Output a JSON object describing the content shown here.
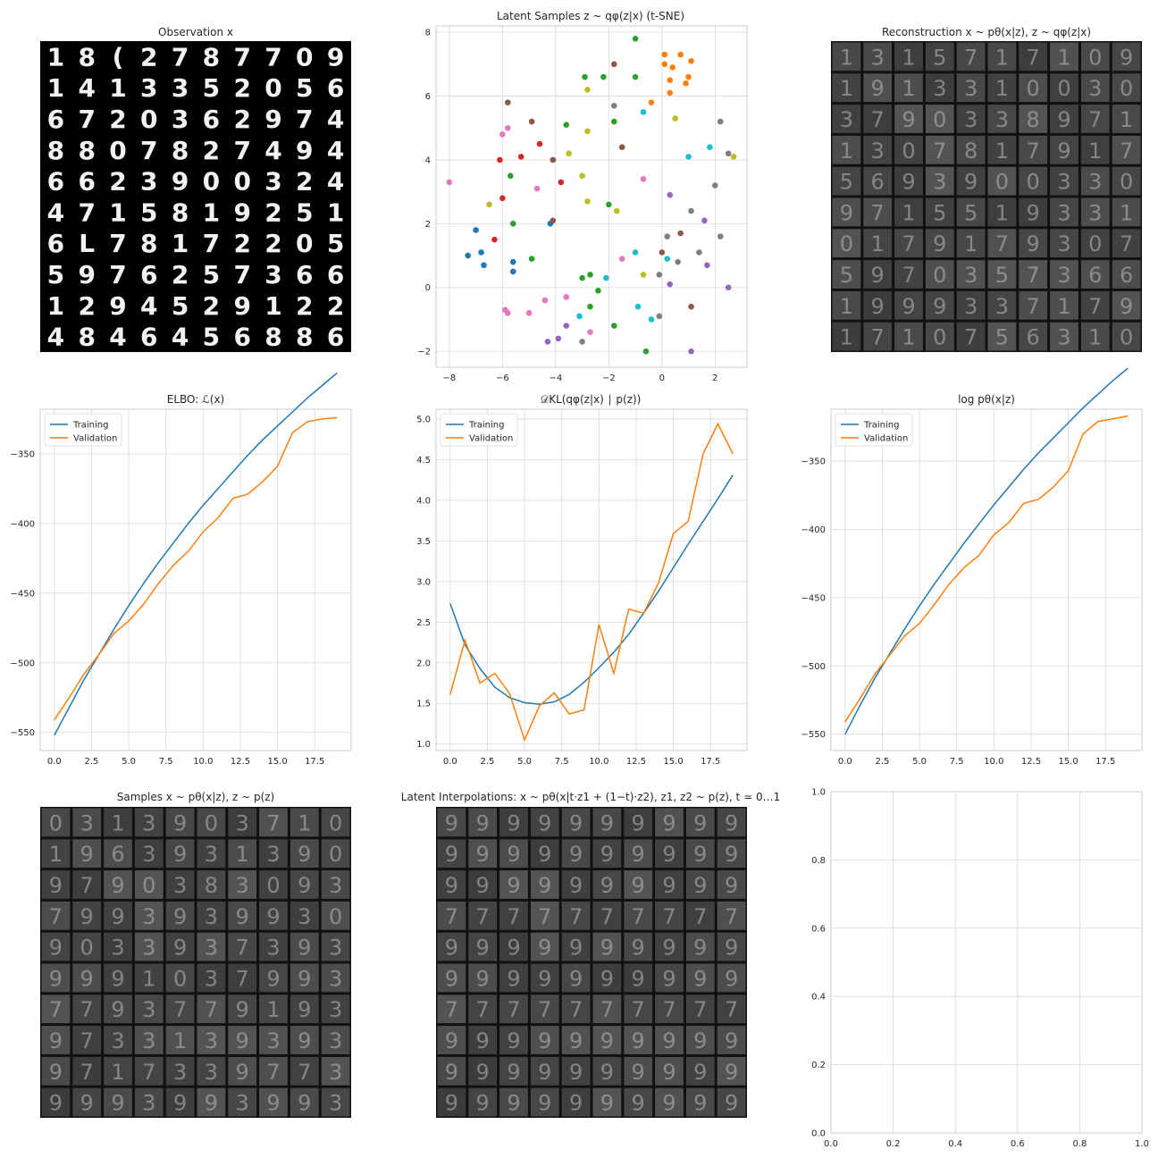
{
  "observation": {
    "title": "Observation x",
    "digits": [
      [
        "1",
        "8",
        "(",
        "2",
        "7",
        "8",
        "7",
        "7",
        "0",
        "9"
      ],
      [
        "1",
        "4",
        "1",
        "3",
        "3",
        "5",
        "2",
        "0",
        "5",
        "6"
      ],
      [
        "6",
        "7",
        "2",
        "0",
        "3",
        "6",
        "2",
        "9",
        "7",
        "4"
      ],
      [
        "8",
        "8",
        "0",
        "7",
        "8",
        "2",
        "7",
        "4",
        "9",
        "4"
      ],
      [
        "6",
        "6",
        "2",
        "3",
        "9",
        "0",
        "0",
        "3",
        "2",
        "4"
      ],
      [
        "4",
        "7",
        "1",
        "5",
        "8",
        "1",
        "9",
        "2",
        "5",
        "1"
      ],
      [
        "6",
        "L",
        "7",
        "8",
        "1",
        "7",
        "2",
        "2",
        "0",
        "5"
      ],
      [
        "5",
        "9",
        "7",
        "6",
        "2",
        "5",
        "7",
        "3",
        "6",
        "6"
      ],
      [
        "1",
        "2",
        "9",
        "4",
        "5",
        "2",
        "9",
        "1",
        "2",
        "2"
      ],
      [
        "4",
        "8",
        "4",
        "6",
        "4",
        "5",
        "6",
        "8",
        "8",
        "6"
      ]
    ]
  },
  "reconstruction": {
    "title": "Reconstruction x ~ pθ(x|z), z ~ qφ(z|x)",
    "digits": [
      [
        "1",
        "3",
        "1",
        "5",
        "7",
        "1",
        "7",
        "1",
        "0",
        "9"
      ],
      [
        "1",
        "9",
        "1",
        "3",
        "3",
        "1",
        "0",
        "0",
        "3",
        "0"
      ],
      [
        "3",
        "7",
        "9",
        "0",
        "3",
        "3",
        "8",
        "9",
        "7",
        "1"
      ],
      [
        "1",
        "3",
        "0",
        "7",
        "8",
        "1",
        "7",
        "9",
        "1",
        "7"
      ],
      [
        "5",
        "6",
        "9",
        "3",
        "9",
        "0",
        "0",
        "3",
        "3",
        "0"
      ],
      [
        "9",
        "7",
        "1",
        "5",
        "5",
        "1",
        "9",
        "3",
        "3",
        "1"
      ],
      [
        "0",
        "1",
        "7",
        "9",
        "1",
        "7",
        "9",
        "3",
        "0",
        "7"
      ],
      [
        "5",
        "9",
        "7",
        "0",
        "3",
        "5",
        "7",
        "3",
        "6",
        "6"
      ],
      [
        "1",
        "9",
        "9",
        "9",
        "3",
        "3",
        "7",
        "1",
        "7",
        "9"
      ],
      [
        "1",
        "7",
        "1",
        "0",
        "7",
        "5",
        "6",
        "3",
        "1",
        "0"
      ]
    ]
  },
  "samples": {
    "title": "Samples x ~ pθ(x|z), z ~ p(z)",
    "digits": [
      [
        "0",
        "3",
        "1",
        "3",
        "9",
        "0",
        "3",
        "7",
        "1",
        "0"
      ],
      [
        "1",
        "9",
        "6",
        "3",
        "9",
        "3",
        "1",
        "3",
        "9",
        "0"
      ],
      [
        "9",
        "7",
        "9",
        "0",
        "3",
        "8",
        "3",
        "0",
        "9",
        "3"
      ],
      [
        "7",
        "9",
        "9",
        "3",
        "9",
        "3",
        "9",
        "9",
        "3",
        "0"
      ],
      [
        "9",
        "0",
        "3",
        "3",
        "9",
        "3",
        "7",
        "3",
        "9",
        "3"
      ],
      [
        "9",
        "9",
        "9",
        "1",
        "0",
        "3",
        "7",
        "9",
        "9",
        "3"
      ],
      [
        "7",
        "7",
        "9",
        "3",
        "7",
        "7",
        "9",
        "1",
        "9",
        "3"
      ],
      [
        "9",
        "7",
        "3",
        "3",
        "1",
        "3",
        "9",
        "3",
        "9",
        "3"
      ],
      [
        "9",
        "7",
        "1",
        "7",
        "3",
        "3",
        "9",
        "7",
        "7",
        "3"
      ],
      [
        "9",
        "9",
        "9",
        "3",
        "9",
        "9",
        "3",
        "9",
        "9",
        "3"
      ]
    ]
  },
  "interpolations": {
    "title": "Latent Interpolations: x ~ pθ(x|t·z1 + (1−t)·z2), z1, z2 ~ p(z), t = 0…1",
    "digits": [
      [
        "9",
        "9",
        "9",
        "9",
        "9",
        "9",
        "9",
        "9",
        "9",
        "9"
      ],
      [
        "9",
        "9",
        "9",
        "9",
        "9",
        "9",
        "9",
        "9",
        "9",
        "9"
      ],
      [
        "9",
        "9",
        "9",
        "9",
        "9",
        "9",
        "9",
        "9",
        "9",
        "9"
      ],
      [
        "7",
        "7",
        "7",
        "7",
        "7",
        "7",
        "7",
        "7",
        "7",
        "7"
      ],
      [
        "9",
        "9",
        "9",
        "9",
        "9",
        "9",
        "9",
        "9",
        "9",
        "9"
      ],
      [
        "9",
        "9",
        "9",
        "9",
        "9",
        "9",
        "9",
        "9",
        "9",
        "9"
      ],
      [
        "7",
        "7",
        "7",
        "7",
        "7",
        "7",
        "7",
        "7",
        "7",
        "7"
      ],
      [
        "9",
        "9",
        "9",
        "9",
        "9",
        "9",
        "9",
        "9",
        "9",
        "9"
      ],
      [
        "9",
        "9",
        "9",
        "9",
        "9",
        "9",
        "9",
        "9",
        "9",
        "9"
      ],
      [
        "9",
        "9",
        "9",
        "9",
        "9",
        "9",
        "9",
        "9",
        "9",
        "9"
      ]
    ]
  },
  "chart_data": [
    {
      "type": "scatter",
      "title": "Latent Samples z ~ qφ(z|x) (t-SNE)",
      "xlim": [
        -8.5,
        3.2
      ],
      "ylim": [
        -2.5,
        8.2
      ],
      "xticks": [
        -8,
        -6,
        -4,
        -2,
        0,
        2
      ],
      "yticks": [
        -2,
        0,
        2,
        4,
        6,
        8
      ],
      "grid": true,
      "series": [
        {
          "color": "#1f77b4",
          "points": [
            [
              -7.0,
              1.8
            ],
            [
              -7.3,
              1.0
            ],
            [
              -6.8,
              1.1
            ],
            [
              -6.7,
              0.7
            ],
            [
              -5.6,
              0.8
            ],
            [
              -5.6,
              0.5
            ],
            [
              -4.2,
              2.0
            ]
          ]
        },
        {
          "color": "#ff7f0e",
          "points": [
            [
              0.1,
              7.3
            ],
            [
              0.1,
              7.0
            ],
            [
              0.4,
              6.9
            ],
            [
              0.7,
              7.3
            ],
            [
              1.1,
              7.1
            ],
            [
              0.3,
              6.5
            ],
            [
              1.0,
              6.6
            ],
            [
              0.9,
              6.4
            ],
            [
              0.3,
              6.1
            ],
            [
              -0.4,
              5.8
            ]
          ]
        },
        {
          "color": "#2ca02c",
          "points": [
            [
              -1.0,
              7.8
            ],
            [
              -2.9,
              6.6
            ],
            [
              -2.2,
              6.6
            ],
            [
              -1.0,
              6.6
            ],
            [
              -1.8,
              5.2
            ],
            [
              -3.6,
              5.1
            ],
            [
              -5.7,
              3.5
            ],
            [
              -5.6,
              2.0
            ],
            [
              -4.9,
              0.9
            ],
            [
              -2.0,
              2.6
            ],
            [
              -3.0,
              0.3
            ],
            [
              -2.7,
              0.4
            ],
            [
              -2.4,
              -0.1
            ],
            [
              -2.7,
              -0.6
            ],
            [
              -1.8,
              -1.2
            ],
            [
              -0.6,
              -2.0
            ]
          ]
        },
        {
          "color": "#d62728",
          "points": [
            [
              -6.1,
              4.0
            ],
            [
              -4.6,
              4.5
            ],
            [
              -5.3,
              4.1
            ],
            [
              -3.8,
              3.3
            ],
            [
              -6.0,
              2.8
            ],
            [
              -6.3,
              1.5
            ]
          ]
        },
        {
          "color": "#9467bd",
          "points": [
            [
              0.3,
              2.9
            ],
            [
              1.6,
              2.1
            ],
            [
              1.7,
              0.7
            ],
            [
              0.3,
              0.1
            ],
            [
              2.5,
              0.0
            ],
            [
              -3.6,
              -1.2
            ],
            [
              -4.3,
              -1.7
            ],
            [
              -3.9,
              -1.6
            ],
            [
              1.1,
              -2.0
            ]
          ]
        },
        {
          "color": "#8c564b",
          "points": [
            [
              -5.8,
              5.8
            ],
            [
              -4.9,
              5.2
            ],
            [
              -1.8,
              7.0
            ],
            [
              -4.1,
              4.0
            ],
            [
              -1.5,
              4.4
            ],
            [
              -4.1,
              2.1
            ],
            [
              0.7,
              1.7
            ],
            [
              0.0,
              1.1
            ],
            [
              1.1,
              -0.6
            ]
          ]
        },
        {
          "color": "#e377c2",
          "points": [
            [
              -6.0,
              4.8
            ],
            [
              -5.8,
              5.0
            ],
            [
              -8.0,
              3.3
            ],
            [
              -4.7,
              3.1
            ],
            [
              -0.7,
              3.4
            ],
            [
              -1.5,
              0.9
            ],
            [
              -4.4,
              -0.4
            ],
            [
              -3.6,
              -0.3
            ],
            [
              -5.9,
              -0.7
            ],
            [
              -5.8,
              -0.8
            ],
            [
              -5.0,
              -0.8
            ],
            [
              -2.7,
              -1.4
            ]
          ]
        },
        {
          "color": "#7f7f7f",
          "points": [
            [
              -1.8,
              5.7
            ],
            [
              2.2,
              5.2
            ],
            [
              2.5,
              4.2
            ],
            [
              2.0,
              3.2
            ],
            [
              1.1,
              2.4
            ],
            [
              2.2,
              1.6
            ],
            [
              0.2,
              1.6
            ],
            [
              1.4,
              1.1
            ],
            [
              0.6,
              0.8
            ],
            [
              -0.1,
              0.4
            ],
            [
              -0.1,
              -0.9
            ],
            [
              -3.0,
              -1.7
            ]
          ]
        },
        {
          "color": "#bcbd22",
          "points": [
            [
              -2.8,
              6.2
            ],
            [
              -2.8,
              4.9
            ],
            [
              0.5,
              5.3
            ],
            [
              -3.5,
              4.2
            ],
            [
              -3.0,
              3.5
            ],
            [
              -6.5,
              2.6
            ],
            [
              -2.8,
              2.7
            ],
            [
              -1.7,
              2.4
            ],
            [
              2.7,
              4.1
            ],
            [
              -0.7,
              0.4
            ]
          ]
        },
        {
          "color": "#17becf",
          "points": [
            [
              -0.7,
              5.5
            ],
            [
              1.0,
              4.1
            ],
            [
              1.8,
              4.4
            ],
            [
              -1.0,
              1.1
            ],
            [
              0.2,
              0.9
            ],
            [
              -2.1,
              0.3
            ],
            [
              -0.9,
              -0.6
            ],
            [
              -0.4,
              -1.0
            ],
            [
              -3.1,
              -0.9
            ]
          ]
        }
      ]
    },
    {
      "type": "line",
      "title": "ELBO: ℒ(x)",
      "xlim": [
        -0.95,
        19.95
      ],
      "ylim": [
        -563,
        -318
      ],
      "xticks": [
        "0.0",
        "2.5",
        "5.0",
        "7.5",
        "10.0",
        "12.5",
        "15.0",
        "17.5"
      ],
      "yticks": [
        -350,
        -400,
        -450,
        -500,
        -550
      ],
      "legend": "top-left",
      "x": [
        0,
        1,
        2,
        3,
        4,
        5,
        6,
        7,
        8,
        9,
        10,
        11,
        12,
        13,
        14,
        15,
        16,
        17,
        18,
        19
      ],
      "series": [
        {
          "name": "Training",
          "color": "#1f77b4",
          "values": [
            -552,
            -532,
            -512,
            -494,
            -476,
            -459,
            -443,
            -428,
            -414,
            -400,
            -387,
            -375,
            -363,
            -351,
            -340,
            -330,
            -320,
            -310,
            -301,
            -292
          ]
        },
        {
          "name": "Validation",
          "color": "#ff7f0e",
          "values": [
            -541,
            -525,
            -508,
            -494,
            -479,
            -470,
            -458,
            -443,
            -430,
            -420,
            -406,
            -396,
            -382,
            -379,
            -370,
            -359,
            -335,
            -327,
            -325,
            -324
          ]
        }
      ]
    },
    {
      "type": "line",
      "title": "𝒟KL(qφ(z|x) ∣ p(z))",
      "xlim": [
        -0.95,
        19.95
      ],
      "ylim": [
        0.92,
        5.12
      ],
      "xticks": [
        "0.0",
        "2.5",
        "5.0",
        "7.5",
        "10.0",
        "12.5",
        "15.0",
        "17.5"
      ],
      "yticks": [
        "1.0",
        "1.5",
        "2.0",
        "2.5",
        "3.0",
        "3.5",
        "4.0",
        "4.5",
        "5.0"
      ],
      "legend": "top-left",
      "x": [
        0,
        1,
        2,
        3,
        4,
        5,
        6,
        7,
        8,
        9,
        10,
        11,
        12,
        13,
        14,
        15,
        16,
        17,
        18,
        19
      ],
      "series": [
        {
          "name": "Training",
          "color": "#1f77b4",
          "values": [
            2.73,
            2.22,
            1.93,
            1.7,
            1.57,
            1.51,
            1.49,
            1.52,
            1.61,
            1.76,
            1.94,
            2.13,
            2.35,
            2.61,
            2.88,
            3.17,
            3.46,
            3.74,
            4.02,
            4.31
          ]
        },
        {
          "name": "Validation",
          "color": "#ff7f0e",
          "values": [
            1.61,
            2.28,
            1.75,
            1.87,
            1.62,
            1.05,
            1.47,
            1.63,
            1.37,
            1.42,
            2.47,
            1.87,
            2.66,
            2.61,
            2.98,
            3.59,
            3.74,
            4.57,
            4.94,
            4.57
          ]
        }
      ]
    },
    {
      "type": "line",
      "title": "log pθ(x|z)",
      "xlim": [
        -0.95,
        19.95
      ],
      "ylim": [
        -562,
        -312
      ],
      "xticks": [
        "0.0",
        "2.5",
        "5.0",
        "7.5",
        "10.0",
        "12.5",
        "15.0",
        "17.5"
      ],
      "yticks": [
        -350,
        -400,
        -450,
        -500,
        -550
      ],
      "legend": "top-left",
      "x": [
        0,
        1,
        2,
        3,
        4,
        5,
        6,
        7,
        8,
        9,
        10,
        11,
        12,
        13,
        14,
        15,
        16,
        17,
        18,
        19
      ],
      "series": [
        {
          "name": "Training",
          "color": "#1f77b4",
          "values": [
            -550,
            -529,
            -509,
            -491,
            -473,
            -456,
            -440,
            -425,
            -410,
            -396,
            -382,
            -369,
            -356,
            -344,
            -333,
            -322,
            -311,
            -301,
            -291,
            -282
          ]
        },
        {
          "name": "Validation",
          "color": "#ff7f0e",
          "values": [
            -541,
            -524,
            -506,
            -492,
            -478,
            -469,
            -455,
            -440,
            -428,
            -419,
            -404,
            -395,
            -381,
            -378,
            -369,
            -357,
            -330,
            -321,
            -319,
            -317
          ]
        }
      ]
    },
    {
      "type": "line",
      "title": "",
      "xlim": [
        0,
        1
      ],
      "ylim": [
        0,
        1
      ],
      "xticks": [
        "0.0",
        "0.2",
        "0.4",
        "0.6",
        "0.8",
        "1.0"
      ],
      "yticks": [
        "0.0",
        "0.2",
        "0.4",
        "0.6",
        "0.8",
        "1.0"
      ],
      "series": []
    }
  ]
}
